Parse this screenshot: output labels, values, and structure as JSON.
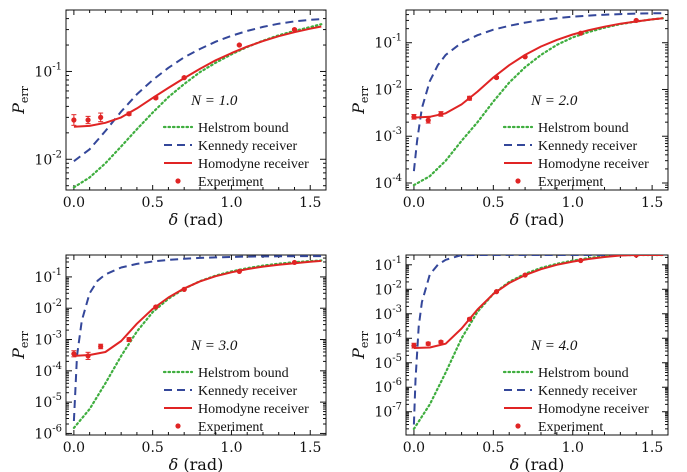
{
  "colors": {
    "helstrom": "#3fae3f",
    "kennedy": "#34479a",
    "homodyne": "#e02424",
    "experiment": "#e02424",
    "axis": "#111111"
  },
  "legend": {
    "helstrom": "Helstrom bound",
    "kennedy": "Kennedy receiver",
    "homodyne": "Homodyne receiver",
    "experiment": "Experiment"
  },
  "x_axis": {
    "ticks": [
      "0.0",
      "0.5",
      "1.0",
      "1.5"
    ],
    "symbol": "δ",
    "unit": "(rad)"
  },
  "y_axis": {
    "symbol": "P",
    "subscript": "err"
  },
  "chart_data": [
    {
      "type": "line",
      "n_label": "N = 1.0",
      "xlim": [
        -0.05,
        1.6
      ],
      "ylim_log10": [
        -2.35,
        -0.3
      ],
      "log_y": true,
      "ytick_exponents": [
        -2,
        -1
      ],
      "legend_position": "center-right",
      "series": [
        {
          "name": "Helstrom bound",
          "style": "dotted",
          "x": [
            0.0,
            0.1,
            0.2,
            0.3,
            0.4,
            0.5,
            0.6,
            0.7,
            0.8,
            0.9,
            1.0,
            1.1,
            1.2,
            1.3,
            1.4,
            1.5,
            1.57
          ],
          "y": [
            0.0048,
            0.0062,
            0.009,
            0.014,
            0.022,
            0.034,
            0.051,
            0.072,
            0.098,
            0.126,
            0.157,
            0.19,
            0.224,
            0.258,
            0.29,
            0.32,
            0.345
          ]
        },
        {
          "name": "Kennedy receiver",
          "style": "dashed",
          "x": [
            0.0,
            0.1,
            0.2,
            0.3,
            0.4,
            0.5,
            0.6,
            0.7,
            0.8,
            0.9,
            1.0,
            1.1,
            1.2,
            1.3,
            1.4,
            1.5,
            1.57
          ],
          "y": [
            0.0095,
            0.013,
            0.021,
            0.035,
            0.055,
            0.08,
            0.11,
            0.145,
            0.18,
            0.218,
            0.255,
            0.29,
            0.322,
            0.35,
            0.372,
            0.388,
            0.395
          ]
        },
        {
          "name": "Homodyne receiver",
          "style": "solid",
          "x": [
            0.0,
            0.1,
            0.2,
            0.3,
            0.4,
            0.5,
            0.6,
            0.7,
            0.8,
            0.9,
            1.0,
            1.1,
            1.2,
            1.3,
            1.4,
            1.5,
            1.57
          ],
          "y": [
            0.0235,
            0.024,
            0.026,
            0.03,
            0.038,
            0.05,
            0.065,
            0.084,
            0.107,
            0.134,
            0.162,
            0.192,
            0.222,
            0.252,
            0.28,
            0.307,
            0.325
          ]
        },
        {
          "name": "Experiment",
          "style": "points",
          "x": [
            0.0,
            0.09,
            0.17,
            0.35,
            0.52,
            0.7,
            1.05,
            1.4
          ],
          "y": [
            0.028,
            0.028,
            0.03,
            0.033,
            0.05,
            0.085,
            0.2,
            0.3
          ],
          "err": [
            0.15,
            0.1,
            0.12,
            0.04,
            0.03,
            0.02,
            0.02,
            0.02
          ]
        }
      ]
    },
    {
      "type": "line",
      "n_label": "N = 2.0",
      "xlim": [
        -0.05,
        1.6
      ],
      "ylim_log10": [
        -4.15,
        -0.3
      ],
      "log_y": true,
      "ytick_exponents": [
        -4,
        -3,
        -2,
        -1
      ],
      "legend_position": "center-right",
      "series": [
        {
          "name": "Helstrom bound",
          "style": "dotted",
          "x": [
            0.0,
            0.1,
            0.2,
            0.3,
            0.4,
            0.5,
            0.6,
            0.7,
            0.8,
            0.9,
            1.0,
            1.1,
            1.2,
            1.3,
            1.4,
            1.5,
            1.57
          ],
          "y": [
            9e-05,
            0.00014,
            0.0003,
            0.0008,
            0.002,
            0.0055,
            0.014,
            0.03,
            0.055,
            0.09,
            0.13,
            0.17,
            0.21,
            0.25,
            0.285,
            0.315,
            0.335
          ]
        },
        {
          "name": "Kennedy receiver",
          "style": "dashed",
          "x": [
            0.0,
            0.02,
            0.05,
            0.1,
            0.15,
            0.2,
            0.3,
            0.4,
            0.5,
            0.6,
            0.7,
            0.8,
            0.9,
            1.0,
            1.1,
            1.2,
            1.3,
            1.4,
            1.5,
            1.57
          ],
          "y": [
            0.00018,
            0.0008,
            0.004,
            0.015,
            0.033,
            0.055,
            0.1,
            0.145,
            0.19,
            0.23,
            0.27,
            0.305,
            0.335,
            0.36,
            0.38,
            0.398,
            0.41,
            0.42,
            0.425,
            0.428
          ]
        },
        {
          "name": "Homodyne receiver",
          "style": "solid",
          "x": [
            0.0,
            0.1,
            0.2,
            0.3,
            0.4,
            0.5,
            0.6,
            0.7,
            0.8,
            0.9,
            1.0,
            1.1,
            1.2,
            1.3,
            1.4,
            1.5,
            1.57
          ],
          "y": [
            0.0025,
            0.0026,
            0.0031,
            0.0048,
            0.009,
            0.018,
            0.033,
            0.055,
            0.083,
            0.115,
            0.15,
            0.185,
            0.22,
            0.255,
            0.285,
            0.315,
            0.335
          ]
        },
        {
          "name": "Experiment",
          "style": "points",
          "x": [
            0.0,
            0.09,
            0.17,
            0.35,
            0.52,
            0.7,
            1.05,
            1.4
          ],
          "y": [
            0.0026,
            0.0022,
            0.003,
            0.0065,
            0.018,
            0.05,
            0.16,
            0.3
          ],
          "err": [
            0.12,
            0.15,
            0.12,
            0.1,
            0.05,
            0.03,
            0.02,
            0.02
          ]
        }
      ]
    },
    {
      "type": "line",
      "n_label": "N = 3.0",
      "xlim": [
        -0.05,
        1.6
      ],
      "ylim_log10": [
        -6.05,
        -0.3
      ],
      "log_y": true,
      "ytick_exponents": [
        -6,
        -5,
        -4,
        -3,
        -2,
        -1
      ],
      "legend_position": "center-right",
      "series": [
        {
          "name": "Helstrom bound",
          "style": "dotted",
          "x": [
            0.0,
            0.1,
            0.2,
            0.3,
            0.4,
            0.5,
            0.6,
            0.7,
            0.8,
            0.9,
            1.0,
            1.1,
            1.2,
            1.3,
            1.4,
            1.5,
            1.57
          ],
          "y": [
            1.5e-06,
            6e-06,
            4e-05,
            0.0003,
            0.0018,
            0.0075,
            0.02,
            0.042,
            0.073,
            0.11,
            0.15,
            0.19,
            0.23,
            0.265,
            0.295,
            0.32,
            0.335
          ]
        },
        {
          "name": "Kennedy receiver",
          "style": "dashed",
          "x": [
            0.0,
            0.02,
            0.05,
            0.1,
            0.15,
            0.2,
            0.3,
            0.4,
            0.5,
            0.6,
            0.7,
            0.8,
            0.9,
            1.0,
            1.1,
            1.2,
            1.3,
            1.4,
            1.5,
            1.57
          ],
          "y": [
            2.5e-06,
            0.0003,
            0.004,
            0.03,
            0.075,
            0.12,
            0.2,
            0.26,
            0.31,
            0.35,
            0.38,
            0.405,
            0.42,
            0.435,
            0.445,
            0.452,
            0.457,
            0.46,
            0.462,
            0.463
          ]
        },
        {
          "name": "Homodyne receiver",
          "style": "solid",
          "x": [
            0.0,
            0.1,
            0.2,
            0.3,
            0.4,
            0.5,
            0.6,
            0.7,
            0.8,
            0.9,
            1.0,
            1.1,
            1.2,
            1.3,
            1.4,
            1.5,
            1.57
          ],
          "y": [
            0.0003,
            0.00032,
            0.0004,
            0.0009,
            0.0032,
            0.0095,
            0.022,
            0.043,
            0.072,
            0.105,
            0.14,
            0.178,
            0.213,
            0.245,
            0.275,
            0.305,
            0.325
          ]
        },
        {
          "name": "Experiment",
          "style": "points",
          "x": [
            0.0,
            0.09,
            0.17,
            0.35,
            0.52,
            0.7,
            1.05,
            1.4
          ],
          "y": [
            0.00035,
            0.0003,
            0.0006,
            0.001,
            0.011,
            0.04,
            0.15,
            0.29
          ],
          "err": [
            0.25,
            0.3,
            0.18,
            0.15,
            0.06,
            0.03,
            0.02,
            0.02
          ]
        }
      ]
    },
    {
      "type": "line",
      "n_label": "N = 4.0",
      "xlim": [
        -0.05,
        1.6
      ],
      "ylim_log10": [
        -7.95,
        -0.6
      ],
      "log_y": true,
      "ytick_exponents": [
        -7,
        -6,
        -5,
        -4,
        -3,
        -2,
        -1
      ],
      "legend_position": "center-right",
      "series": [
        {
          "name": "Helstrom bound",
          "style": "dotted",
          "x": [
            0.0,
            0.1,
            0.2,
            0.3,
            0.4,
            0.5,
            0.6,
            0.7,
            0.8,
            0.9,
            1.0,
            1.1,
            1.2,
            1.3,
            1.4,
            1.5,
            1.57
          ],
          "y": [
            2e-08,
            2e-07,
            4e-06,
            0.0001,
            0.0012,
            0.0065,
            0.02,
            0.043,
            0.075,
            0.11,
            0.148,
            0.188,
            0.225,
            0.26,
            0.29,
            0.315,
            0.33
          ]
        },
        {
          "name": "Kennedy receiver",
          "style": "dashed",
          "x": [
            0.0,
            0.01,
            0.03,
            0.05,
            0.1,
            0.15,
            0.2,
            0.3,
            0.4,
            0.5,
            0.6,
            0.7,
            0.8,
            0.9,
            1.0,
            1.1,
            1.2,
            1.3,
            1.4,
            1.5,
            1.57
          ],
          "y": [
            3e-08,
            2e-06,
            0.0003,
            0.003,
            0.04,
            0.1,
            0.16,
            0.25,
            0.31,
            0.355,
            0.39,
            0.415,
            0.43,
            0.44,
            0.448,
            0.453,
            0.456,
            0.458,
            0.46,
            0.461,
            0.462
          ]
        },
        {
          "name": "Homodyne receiver",
          "style": "solid",
          "x": [
            0.0,
            0.1,
            0.2,
            0.3,
            0.4,
            0.5,
            0.6,
            0.7,
            0.8,
            0.9,
            1.0,
            1.1,
            1.2,
            1.3,
            1.4,
            1.5,
            1.57
          ],
          "y": [
            4e-05,
            4.2e-05,
            6e-05,
            0.00025,
            0.0015,
            0.0065,
            0.018,
            0.038,
            0.066,
            0.1,
            0.135,
            0.172,
            0.208,
            0.24,
            0.27,
            0.3,
            0.32
          ]
        },
        {
          "name": "Experiment",
          "style": "points",
          "x": [
            0.0,
            0.09,
            0.17,
            0.35,
            0.52,
            0.7,
            1.05,
            1.4
          ],
          "y": [
            5e-05,
            6e-05,
            7e-05,
            0.0006,
            0.008,
            0.038,
            0.15,
            0.28
          ],
          "err": [
            0.25,
            0.15,
            0.12,
            0.12,
            0.06,
            0.03,
            0.02,
            0.02
          ]
        }
      ]
    }
  ]
}
